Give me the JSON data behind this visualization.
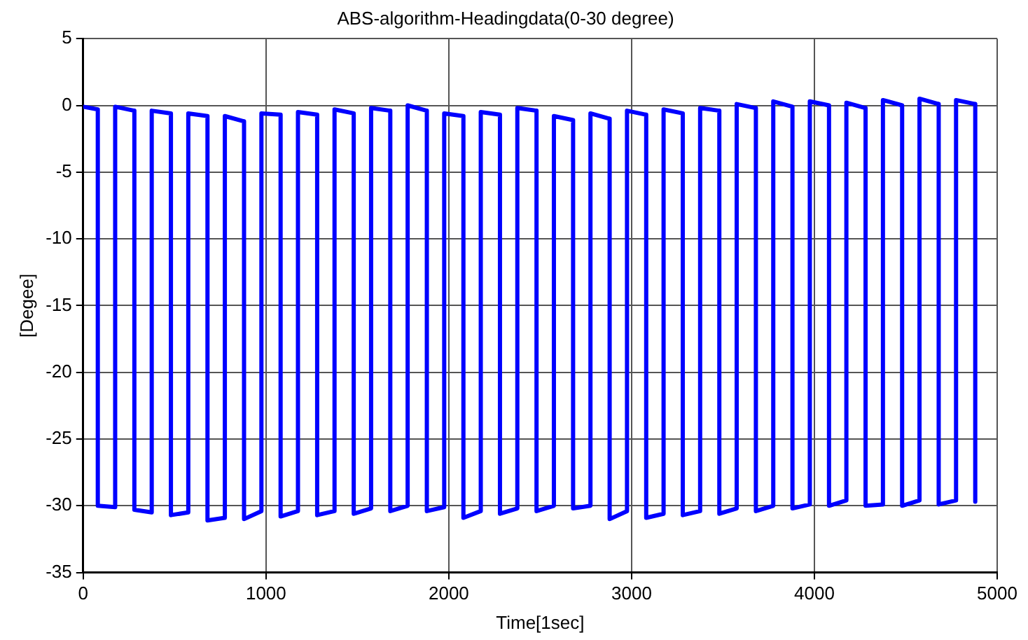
{
  "chart_data": {
    "type": "line",
    "title": "ABS-algorithm-Headingdata(0-30 degree)",
    "xlabel": "Time[1sec]",
    "ylabel": "[Degee]",
    "xlim": [
      0,
      5000
    ],
    "xticks": [
      0,
      1000,
      2000,
      3000,
      4000,
      5000
    ],
    "ylim": [
      -35,
      5
    ],
    "yticks": [
      -35,
      -30,
      -25,
      -20,
      -15,
      -10,
      -5,
      0,
      5
    ],
    "grid": true,
    "legend": false,
    "marker": "none",
    "line_style": "solid",
    "series": [
      {
        "color": "#0000ff",
        "x": [
          0,
          80,
          80,
          175,
          175,
          280,
          280,
          375,
          375,
          480,
          480,
          575,
          575,
          680,
          680,
          775,
          775,
          880,
          880,
          975,
          975,
          1080,
          1080,
          1175,
          1175,
          1280,
          1280,
          1375,
          1375,
          1480,
          1480,
          1575,
          1575,
          1680,
          1680,
          1775,
          1775,
          1880,
          1880,
          1975,
          1975,
          2080,
          2080,
          2175,
          2175,
          2280,
          2280,
          2375,
          2375,
          2480,
          2480,
          2575,
          2575,
          2680,
          2680,
          2775,
          2775,
          2880,
          2880,
          2975,
          2975,
          3080,
          3080,
          3175,
          3175,
          3280,
          3280,
          3375,
          3375,
          3480,
          3480,
          3575,
          3575,
          3680,
          3680,
          3775,
          3775,
          3880,
          3880,
          3975,
          3975,
          4080,
          4080,
          4175,
          4175,
          4280,
          4280,
          4375,
          4375,
          4480,
          4480,
          4575,
          4575,
          4680,
          4680,
          4775,
          4775,
          4880,
          4880
        ],
        "values": [
          -0.1,
          -0.3,
          -30.0,
          -30.1,
          -0.1,
          -0.4,
          -30.3,
          -30.5,
          -0.4,
          -0.6,
          -30.7,
          -30.5,
          -0.6,
          -0.8,
          -31.1,
          -30.9,
          -0.8,
          -1.2,
          -31.0,
          -30.4,
          -0.6,
          -0.7,
          -30.8,
          -30.4,
          -0.5,
          -0.7,
          -30.7,
          -30.4,
          -0.3,
          -0.6,
          -30.6,
          -30.2,
          -0.2,
          -0.4,
          -30.4,
          -30.0,
          0.0,
          -0.4,
          -30.4,
          -30.1,
          -0.6,
          -0.8,
          -30.9,
          -30.4,
          -0.5,
          -0.7,
          -30.6,
          -30.2,
          -0.2,
          -0.4,
          -30.4,
          -30.0,
          -0.8,
          -1.1,
          -30.2,
          -30.0,
          -0.6,
          -1.0,
          -31.0,
          -30.4,
          -0.4,
          -0.7,
          -30.9,
          -30.6,
          -0.3,
          -0.6,
          -30.7,
          -30.4,
          -0.2,
          -0.4,
          -30.6,
          -30.2,
          0.1,
          -0.2,
          -30.4,
          -30.0,
          0.3,
          -0.1,
          -30.2,
          -29.9,
          0.3,
          0.0,
          -30.0,
          -29.6,
          0.2,
          -0.2,
          -30.0,
          -29.9,
          0.4,
          0.0,
          -30.0,
          -29.6,
          0.5,
          0.1,
          -29.9,
          -29.6,
          0.4,
          0.1,
          -29.7
        ]
      }
    ]
  }
}
